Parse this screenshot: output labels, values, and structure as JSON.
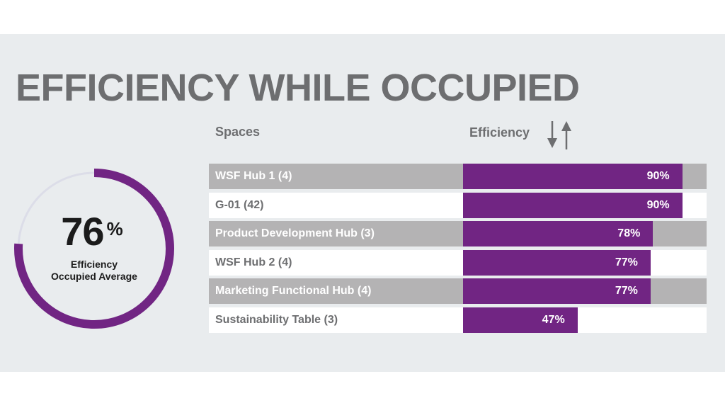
{
  "title": "EFFICIENCY WHILE OCCUPIED",
  "kpi": {
    "value": "76",
    "unit": "%",
    "label_line1": "Efficiency",
    "label_line2": "Occupied Average",
    "fraction": 0.76,
    "ring_color": "#712583",
    "track_color": "#dcdde8"
  },
  "table": {
    "col_spaces": "Spaces",
    "col_efficiency": "Efficiency",
    "sort_icon": "sort-arrows-icon"
  },
  "colors": {
    "bar": "#712583",
    "row_shaded": "#b4b3b4",
    "row_plain": "#ffffff",
    "panel": "#e9ecee",
    "title": "#6d6e70"
  },
  "chart_data": {
    "type": "bar",
    "orientation": "horizontal",
    "categories": [
      "WSF Hub 1 (4)",
      "G-01 (42)",
      "Product Development Hub (3)",
      "WSF Hub 2 (4)",
      "Marketing Functional Hub (4)",
      "Sustainability Table (3)"
    ],
    "values": [
      90,
      90,
      78,
      77,
      77,
      47
    ],
    "value_labels": [
      "90%",
      "90%",
      "78%",
      "77%",
      "77%",
      "47%"
    ],
    "xlim": [
      0,
      100
    ],
    "grid": false
  }
}
